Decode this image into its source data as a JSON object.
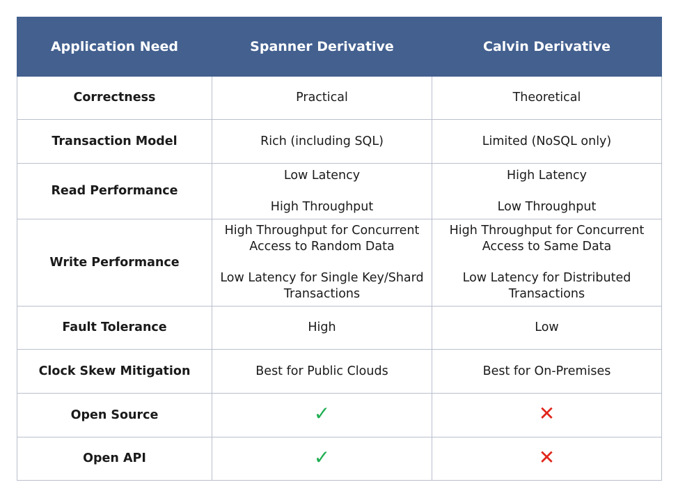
{
  "header": {
    "col1": "Application Need",
    "col2": "Spanner Derivative",
    "col3": "Calvin Derivative"
  },
  "rows": [
    {
      "need": "Correctness",
      "spanner": [
        "Practical"
      ],
      "calvin": [
        "Theoretical"
      ]
    },
    {
      "need": "Transaction Model",
      "spanner": [
        "Rich (including SQL)"
      ],
      "calvin": [
        "Limited (NoSQL only)"
      ]
    },
    {
      "need": "Read Performance",
      "spanner": [
        "Low Latency",
        "High Throughput"
      ],
      "calvin": [
        "High Latency",
        "Low Throughput"
      ]
    },
    {
      "need": "Write Performance",
      "spanner": [
        "High Throughput for Concurrent",
        "Access to Random Data",
        "Low Latency for Single Key/Shard",
        "Transactions"
      ],
      "calvin": [
        "High Throughput for Concurrent",
        "Access to Same Data",
        "Low Latency for Distributed",
        "Transactions"
      ]
    },
    {
      "need": "Fault Tolerance",
      "spanner": [
        "High"
      ],
      "calvin": [
        "Low"
      ]
    },
    {
      "need": "Clock Skew Mitigation",
      "spanner": [
        "Best for Public Clouds"
      ],
      "calvin": [
        "Best for On-Premises"
      ]
    },
    {
      "need": "Open Source",
      "spanner_icon": "check-icon",
      "calvin_icon": "cross-icon",
      "spanner_glyph": "✓",
      "calvin_glyph": "✕"
    },
    {
      "need": "Open API",
      "spanner_icon": "check-icon",
      "calvin_icon": "cross-icon",
      "spanner_glyph": "✓",
      "calvin_glyph": "✕"
    }
  ],
  "colors": {
    "header_bg": "#43608f",
    "check": "#1fae52",
    "cross": "#e0261b"
  }
}
